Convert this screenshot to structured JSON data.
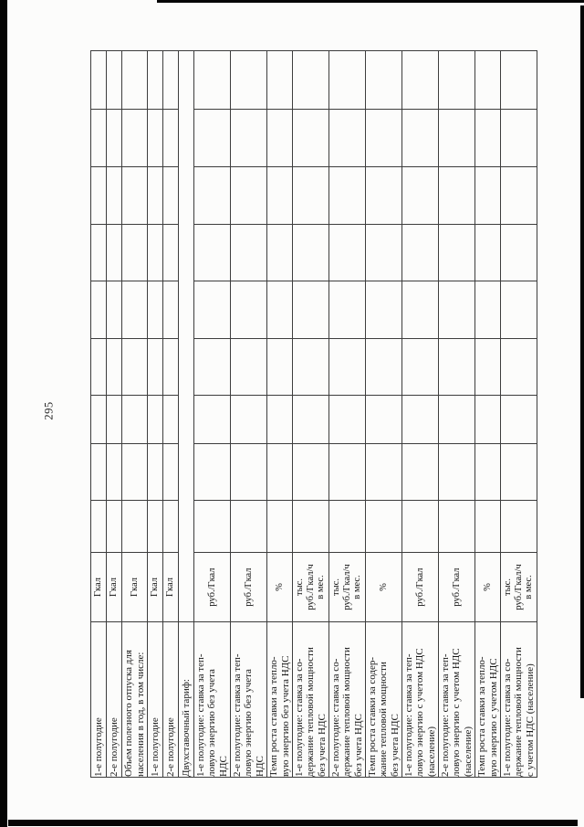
{
  "page": {
    "number": "295"
  },
  "table": {
    "empty_column_count": 9,
    "rows": [
      {
        "label": "1-е полугодие",
        "unit": "Гкал"
      },
      {
        "label": "2-е полугодие",
        "unit": "Гкал"
      },
      {
        "label": "Объем полезного отпуска для\nнаселения в год, в том числе:",
        "unit": "Гкал"
      },
      {
        "label": "1-е полугодие",
        "unit": "Гкал"
      },
      {
        "label": "2-е полугодие",
        "unit": "Гкал"
      },
      {
        "label": "Двухставочный тариф:",
        "unit": "",
        "merged": true
      },
      {
        "label": "1-е полугодие: ставка за теп-\nловую энергию без учета\nНДС",
        "unit": "руб./Гкал"
      },
      {
        "label": "2-е полугодие: ставка за теп-\nловую энергию без учета\nНДС",
        "unit": "руб./Гкал"
      },
      {
        "label": "Темп роста ставки за тепло-\nвую энергию без учета НДС",
        "unit": "%"
      },
      {
        "label": "1-е полугодие: ставка за со-\nдержание тепловой мощности\nбез учета НДС",
        "unit": "тыс.\nруб./Гкал/ч\nв мес."
      },
      {
        "label": "2-е полугодие: ставка за со-\nдержание тепловой мощности\nбез учета НДС",
        "unit": "тыс.\nруб./Гкал/ч\nв мес."
      },
      {
        "label": "Темп роста ставки за содер-\nжание тепловой мощности\nбез учета НДС",
        "unit": "%"
      },
      {
        "label": "1-е полугодие: ставка за теп-\nловую энергию с учетом НДС\n(население)",
        "unit": "руб./Гкал"
      },
      {
        "label": "2-е полугодие: ставка за теп-\nловую энергию с учетом НДС\n(население)",
        "unit": "руб./Гкал"
      },
      {
        "label": "Темп роста ставки за тепло-\nвую энергию с учетом НДС",
        "unit": "%"
      },
      {
        "label": "1-е полугодие: ставка за со-\nдержание тепловой мощности\nс учетом НДС (население)",
        "unit": "тыс.\nруб./Гкал/ч\nв мес."
      }
    ]
  }
}
